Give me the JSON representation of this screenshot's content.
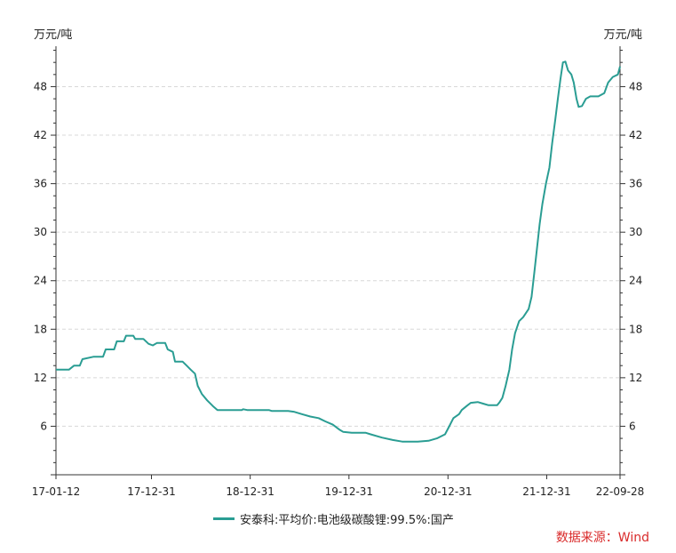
{
  "chart_data": {
    "type": "line",
    "y_unit_left": "万元/吨",
    "y_unit_right": "万元/吨",
    "ylim": [
      0,
      53
    ],
    "yticks": [
      "6",
      "12",
      "18",
      "24",
      "30",
      "36",
      "42",
      "48"
    ],
    "ytick_values": [
      6,
      12,
      18,
      24,
      30,
      36,
      42,
      48
    ],
    "xlim": [
      "2017-01-12",
      "2022-09-28"
    ],
    "xtick_labels": [
      "17-01-12",
      "17-12-31",
      "18-12-31",
      "19-12-31",
      "20-12-31",
      "21-12-31",
      "22-09-28"
    ],
    "xtick_dates": [
      "2017-01-12",
      "2017-12-31",
      "2018-12-31",
      "2019-12-31",
      "2020-12-31",
      "2021-12-31",
      "2022-09-28"
    ],
    "grid": true,
    "legend_position": "bottom",
    "series": [
      {
        "name": "安泰科:平均价:电池级碳酸锂:99.5%:国产",
        "color": "#2a9d93",
        "points": [
          [
            "2017-01-12",
            13.0
          ],
          [
            "2017-03-01",
            13.0
          ],
          [
            "2017-03-20",
            13.5
          ],
          [
            "2017-04-10",
            13.5
          ],
          [
            "2017-04-20",
            14.3
          ],
          [
            "2017-06-01",
            14.6
          ],
          [
            "2017-07-05",
            14.6
          ],
          [
            "2017-07-15",
            15.5
          ],
          [
            "2017-08-15",
            15.5
          ],
          [
            "2017-08-25",
            16.5
          ],
          [
            "2017-09-20",
            16.5
          ],
          [
            "2017-09-28",
            17.2
          ],
          [
            "2017-10-25",
            17.2
          ],
          [
            "2017-11-01",
            16.8
          ],
          [
            "2017-12-01",
            16.8
          ],
          [
            "2017-12-20",
            16.2
          ],
          [
            "2018-01-05",
            16.0
          ],
          [
            "2018-01-20",
            16.3
          ],
          [
            "2018-02-20",
            16.3
          ],
          [
            "2018-03-01",
            15.5
          ],
          [
            "2018-03-20",
            15.2
          ],
          [
            "2018-03-28",
            14.0
          ],
          [
            "2018-04-25",
            14.0
          ],
          [
            "2018-05-10",
            13.5
          ],
          [
            "2018-05-25",
            13.0
          ],
          [
            "2018-06-10",
            12.5
          ],
          [
            "2018-06-20",
            11.0
          ],
          [
            "2018-07-05",
            10.0
          ],
          [
            "2018-07-25",
            9.2
          ],
          [
            "2018-08-15",
            8.5
          ],
          [
            "2018-09-01",
            8.0
          ],
          [
            "2018-10-15",
            8.0
          ],
          [
            "2018-11-30",
            8.0
          ],
          [
            "2018-12-05",
            8.1
          ],
          [
            "2018-12-20",
            8.0
          ],
          [
            "2019-03-10",
            8.0
          ],
          [
            "2019-03-20",
            7.9
          ],
          [
            "2019-05-20",
            7.9
          ],
          [
            "2019-06-10",
            7.8
          ],
          [
            "2019-07-10",
            7.5
          ],
          [
            "2019-08-10",
            7.2
          ],
          [
            "2019-09-10",
            7.0
          ],
          [
            "2019-10-05",
            6.6
          ],
          [
            "2019-11-01",
            6.2
          ],
          [
            "2019-11-25",
            5.6
          ],
          [
            "2019-12-10",
            5.3
          ],
          [
            "2020-01-10",
            5.2
          ],
          [
            "2020-03-01",
            5.2
          ],
          [
            "2020-03-20",
            5.0
          ],
          [
            "2020-05-01",
            4.6
          ],
          [
            "2020-06-10",
            4.3
          ],
          [
            "2020-07-15",
            4.1
          ],
          [
            "2020-09-10",
            4.1
          ],
          [
            "2020-10-20",
            4.2
          ],
          [
            "2020-11-20",
            4.5
          ],
          [
            "2020-12-20",
            5.0
          ],
          [
            "2021-01-05",
            6.0
          ],
          [
            "2021-01-20",
            7.0
          ],
          [
            "2021-02-10",
            7.5
          ],
          [
            "2021-02-20",
            8.0
          ],
          [
            "2021-03-10",
            8.5
          ],
          [
            "2021-03-25",
            8.9
          ],
          [
            "2021-04-20",
            9.0
          ],
          [
            "2021-05-10",
            8.8
          ],
          [
            "2021-05-30",
            8.6
          ],
          [
            "2021-07-01",
            8.6
          ],
          [
            "2021-07-10",
            9.0
          ],
          [
            "2021-07-20",
            9.5
          ],
          [
            "2021-08-01",
            11.0
          ],
          [
            "2021-08-15",
            13.0
          ],
          [
            "2021-08-25",
            15.5
          ],
          [
            "2021-09-05",
            17.5
          ],
          [
            "2021-09-20",
            19.0
          ],
          [
            "2021-10-05",
            19.5
          ],
          [
            "2021-10-25",
            20.5
          ],
          [
            "2021-11-05",
            22.0
          ],
          [
            "2021-11-15",
            25.0
          ],
          [
            "2021-11-25",
            28.0
          ],
          [
            "2021-12-05",
            31.0
          ],
          [
            "2021-12-15",
            33.5
          ],
          [
            "2021-12-28",
            36.0
          ],
          [
            "2022-01-10",
            38.0
          ],
          [
            "2022-01-20",
            41.0
          ],
          [
            "2022-02-01",
            44.0
          ],
          [
            "2022-02-10",
            46.5
          ],
          [
            "2022-02-20",
            49.0
          ],
          [
            "2022-03-01",
            51.0
          ],
          [
            "2022-03-10",
            51.1
          ],
          [
            "2022-03-20",
            50.0
          ],
          [
            "2022-04-01",
            49.5
          ],
          [
            "2022-04-10",
            48.5
          ],
          [
            "2022-04-20",
            46.5
          ],
          [
            "2022-04-28",
            45.5
          ],
          [
            "2022-05-10",
            45.6
          ],
          [
            "2022-05-25",
            46.5
          ],
          [
            "2022-06-10",
            46.8
          ],
          [
            "2022-07-10",
            46.8
          ],
          [
            "2022-08-01",
            47.2
          ],
          [
            "2022-08-15",
            48.5
          ],
          [
            "2022-09-01",
            49.2
          ],
          [
            "2022-09-20",
            49.5
          ],
          [
            "2022-09-28",
            50.5
          ]
        ]
      }
    ]
  },
  "source_label": "数据来源：Wind"
}
